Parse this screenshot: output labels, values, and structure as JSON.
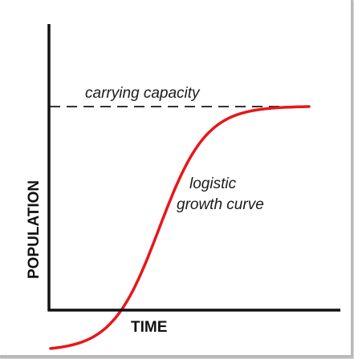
{
  "colors": {
    "curve": "#e8161b",
    "axis": "#111111",
    "capacity_line": "#333333",
    "frame_shadow": "#b9b9b9"
  },
  "labels": {
    "carrying_capacity": "carrying capacity",
    "curve_line1": "logistic",
    "curve_line2": "growth curve",
    "x_axis": "TIME",
    "y_axis": "POPULATION"
  },
  "curve": {
    "type": "logistic",
    "x_range": [
      0,
      1
    ],
    "y_range": [
      0,
      1
    ],
    "start_level": 0.22,
    "carrying_capacity_level": 1.0,
    "midpoint": 0.42,
    "steepness": 11
  }
}
